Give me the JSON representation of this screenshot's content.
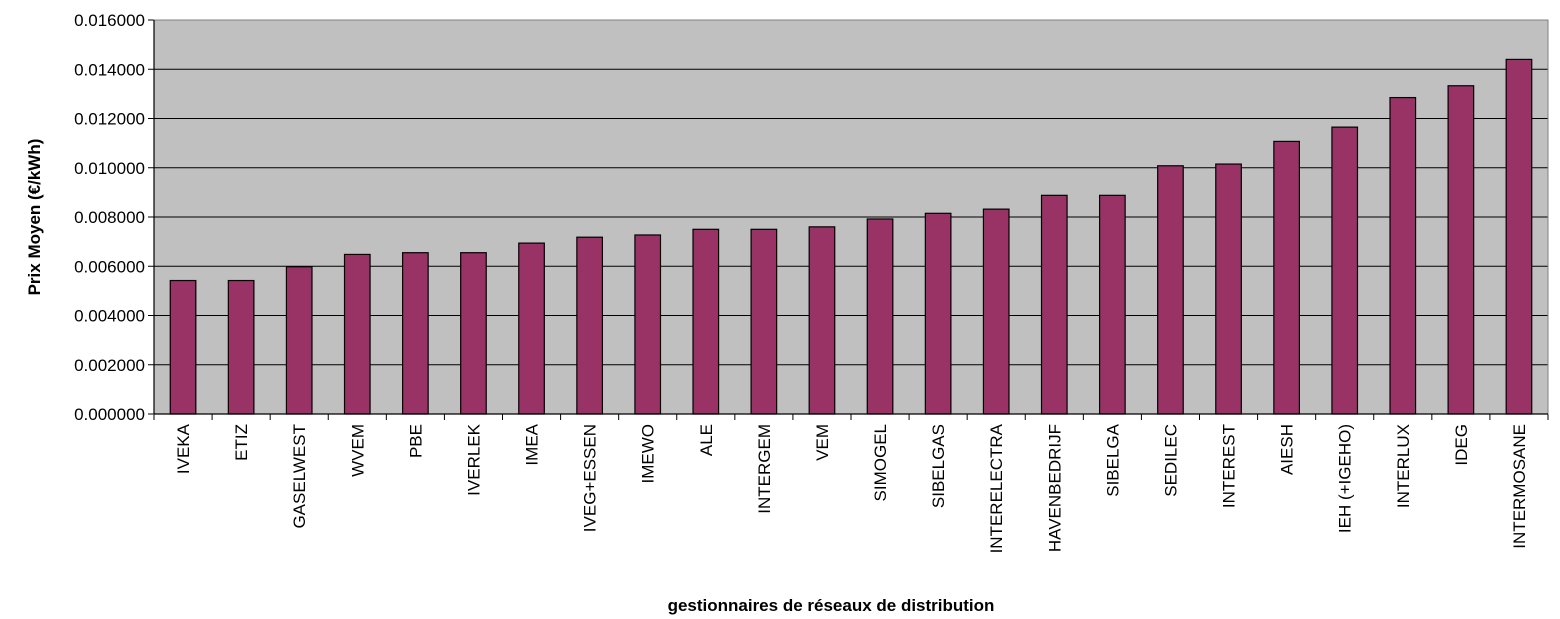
{
  "chart_data": {
    "type": "bar",
    "title": "",
    "xlabel": "gestionnaires de réseaux de distribution",
    "ylabel": "Prix Moyen (€/kWh)",
    "ylim": [
      0,
      0.016
    ],
    "yticks": [
      "0.000000",
      "0.002000",
      "0.004000",
      "0.006000",
      "0.008000",
      "0.010000",
      "0.012000",
      "0.014000",
      "0.016000"
    ],
    "grid": true,
    "categories": [
      "IVEKA",
      "ETIZ",
      "GASELWEST",
      "WVEM",
      "PBE",
      "IVERLEK",
      "IMEA",
      "IVEG+ESSEN",
      "IMEWO",
      "ALE",
      "INTERGEM",
      "VEM",
      "SIMOGEL",
      "SIBELGAS",
      "INTERELECTRA",
      "HAVENBEDRIJF",
      "SIBELGA",
      "SEDILEC",
      "INTEREST",
      "AIESH",
      "IEH (+IGEHO)",
      "INTERLUX",
      "IDEG",
      "INTERMOSANE"
    ],
    "values": [
      0.00542,
      0.00542,
      0.00598,
      0.00648,
      0.00655,
      0.00655,
      0.00694,
      0.00718,
      0.00727,
      0.0075,
      0.0075,
      0.0076,
      0.00792,
      0.00815,
      0.00832,
      0.00888,
      0.00888,
      0.01008,
      0.01015,
      0.01107,
      0.01165,
      0.01285,
      0.01333,
      0.0144
    ],
    "colors": {
      "bar": "#993366",
      "plot_bg": "#c0c0c0",
      "grid": "#000000"
    }
  }
}
